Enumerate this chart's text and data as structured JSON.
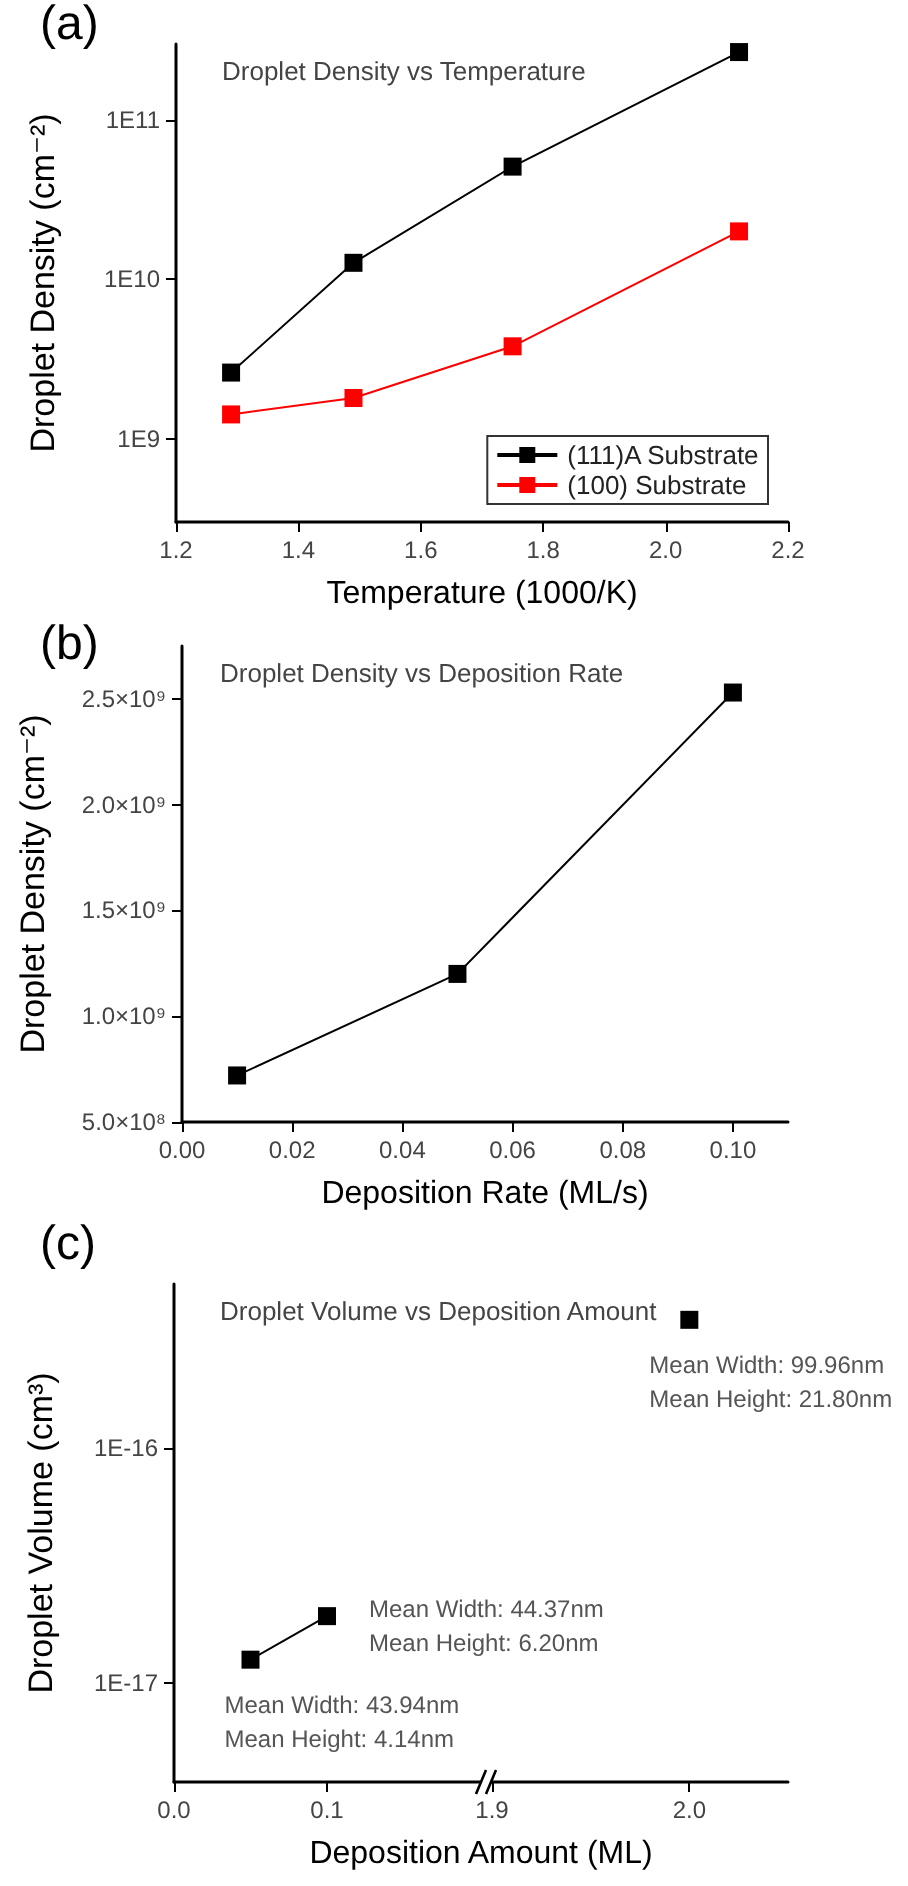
{
  "chart_data": [
    {
      "type": "line",
      "title": "Droplet Density vs Temperature",
      "xlabel": "Temperature (1000/K)",
      "ylabel": "Droplet Density (cm⁻²)",
      "annotations": [
        "(a)"
      ],
      "x": [
        1.29,
        1.49,
        1.75,
        2.12
      ],
      "series": [
        {
          "name": "(111)A Substrate",
          "color": "#000000",
          "values": [
            2600000000.0,
            12700000000.0,
            51000000000.0,
            267000000000.0
          ]
        },
        {
          "name": "(100) Substrate",
          "color": "#ff0000",
          "values": [
            1420000000.0,
            1800000000.0,
            3800000000.0,
            20000000000.0
          ]
        }
      ],
      "log": "y",
      "xlim": [
        1.2,
        2.2
      ],
      "xticks": [
        1.2,
        1.4,
        1.6,
        1.8,
        {
          "value": 2,
          "label": "2.0"
        },
        2.2
      ],
      "ylim": [
        300000000.0,
        300000000000.0
      ],
      "yticks": [
        {
          "value": 1000000000.0,
          "label": "1E9"
        },
        {
          "value": 10000000000.0,
          "label": "1E10"
        },
        {
          "value": 100000000000.0,
          "label": "1E11"
        }
      ],
      "legend": "bottom right",
      "marker": "square"
    },
    {
      "type": "line",
      "title": "Droplet Density vs Deposition Rate",
      "xlabel": "Deposition Rate (ML/s)",
      "ylabel": "Droplet Density (cm⁻²)",
      "annotations": [
        "(b)"
      ],
      "x": [
        0.01,
        0.05,
        0.1
      ],
      "series": [
        {
          "color": "#000000",
          "values": [
            720000000.0,
            1200000000.0,
            2530000000.0
          ]
        }
      ],
      "xlim": [
        0,
        0.11
      ],
      "xticks": [
        {
          "value": 0,
          "label": "0.00"
        },
        {
          "value": 0.02,
          "label": "0.02"
        },
        {
          "value": 0.04,
          "label": "0.04"
        },
        {
          "value": 0.06,
          "label": "0.06"
        },
        {
          "value": 0.08,
          "label": "0.08"
        },
        {
          "value": 0.1,
          "label": "0.10"
        }
      ],
      "ylim": [
        500000000.0,
        2750000000.0
      ],
      "yticks": [
        {
          "value": 500000000.0,
          "label": "5.0×10⁸"
        },
        {
          "value": 1000000000.0,
          "label": "1.0×10⁹"
        },
        {
          "value": 1500000000.0,
          "label": "1.5×10⁹"
        },
        {
          "value": 2000000000.0,
          "label": "2.0×10⁹"
        },
        {
          "value": 2500000000.0,
          "label": "2.5×10⁹"
        }
      ],
      "marker": "square"
    },
    {
      "type": "line",
      "title": "Droplet Volume vs Deposition Amount",
      "xlabel": "Deposition Amount (ML)",
      "ylabel": "Droplet Volume (cm³)",
      "annotations": [
        "(c)",
        {
          "text": "Mean Width: 43.94nm\nMean Height: 4.14nm",
          "x": 0.05,
          "y": 1.26e-17
        },
        {
          "text": "Mean Width: 44.37nm\nMean Height: 6.20nm",
          "x": 0.1,
          "y": 1.93e-17
        }
      ],
      "x": [
        0.05,
        0.1
      ],
      "series": [
        {
          "color": "#000000",
          "values": [
            1.26e-17,
            1.93e-17
          ]
        }
      ],
      "log": "y",
      "xlim": [
        0,
        0.2
      ],
      "xticks": [
        {
          "value": 0,
          "label": "0.0"
        },
        0.1
      ],
      "ylim": [
        3.8e-18,
        5e-16
      ],
      "yticks": [
        {
          "value": 1e-17,
          "label": "1E-17"
        },
        {
          "value": 1e-16,
          "label": "1E-16"
        }
      ],
      "marker": "square"
    },
    {
      "type": "line",
      "annotations": [
        {
          "text": "Mean Width: 99.96nm\nMean Height: 21.80nm",
          "x": 2,
          "y": 3.52e-16
        }
      ],
      "x": [
        2
      ],
      "series": [
        {
          "color": "#000000",
          "values": [
            3.52e-16
          ]
        }
      ],
      "log": "y",
      "xlim": [
        1.9,
        2.05
      ],
      "xticks": [
        1.9,
        {
          "value": 2,
          "label": "2.0"
        }
      ],
      "ylim": [
        3.8e-18,
        5e-16
      ],
      "tick_labels": "x",
      "marker": "square"
    }
  ]
}
